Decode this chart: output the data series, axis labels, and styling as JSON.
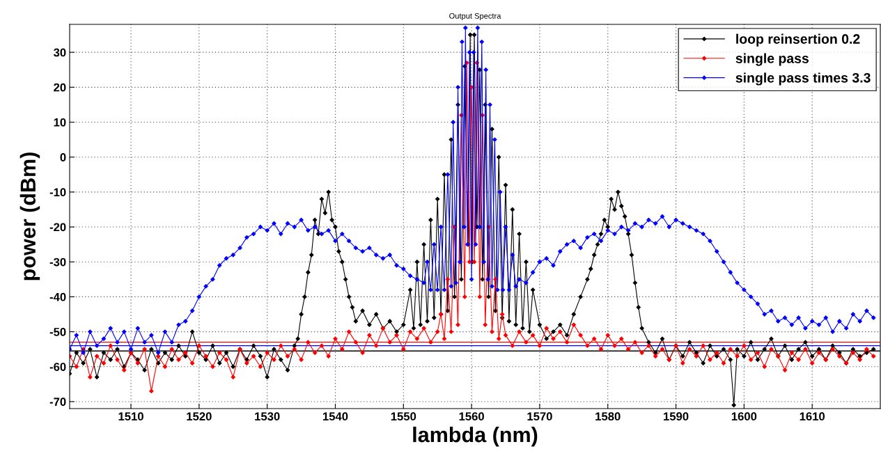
{
  "chart_data": {
    "type": "line",
    "title": "Output Spectra",
    "xlabel": "lambda (nm)",
    "ylabel": "power (dBm)",
    "xlim": [
      1501,
      1620
    ],
    "ylim": [
      -72,
      38
    ],
    "xticks": [
      1510,
      1520,
      1530,
      1540,
      1550,
      1560,
      1570,
      1580,
      1590,
      1600,
      1610
    ],
    "yticks": [
      -70,
      -60,
      -50,
      -40,
      -30,
      -20,
      -10,
      0,
      10,
      20,
      30
    ],
    "grid": true,
    "legend": "top right",
    "marker": "diamond",
    "line_style": "solid",
    "ref_lines": [
      {
        "axis": "y",
        "value": -53,
        "color": "#ff0000"
      },
      {
        "axis": "y",
        "value": -54,
        "color": "#0000ff"
      },
      {
        "axis": "y",
        "value": -55.5,
        "color": "#000000"
      }
    ],
    "series": [
      {
        "name": "loop reinsertion 0.2",
        "color": "#000000",
        "x": [
          1501,
          1502,
          1503,
          1504,
          1505,
          1506,
          1507,
          1508,
          1509,
          1510,
          1511,
          1512,
          1513,
          1514,
          1515,
          1516,
          1517,
          1518,
          1519,
          1520,
          1521,
          1522,
          1523,
          1524,
          1525,
          1526,
          1527,
          1528,
          1529,
          1530,
          1531,
          1532,
          1533,
          1534,
          1534.5,
          1535,
          1535.5,
          1536,
          1536.5,
          1537,
          1537.5,
          1538,
          1538.5,
          1539,
          1539.5,
          1540,
          1540.5,
          1541,
          1541.5,
          1542,
          1542.5,
          1543,
          1544,
          1545,
          1546,
          1547,
          1548,
          1549,
          1550,
          1551,
          1551.5,
          1552,
          1552.5,
          1553,
          1553.5,
          1554,
          1554.5,
          1555,
          1555.5,
          1556,
          1556.5,
          1557,
          1557.5,
          1558,
          1558.5,
          1559,
          1559.5,
          1559.8,
          1560.1,
          1560.4,
          1560.8,
          1561.2,
          1561.6,
          1562,
          1562.5,
          1563,
          1563.5,
          1564,
          1564.5,
          1565,
          1565.5,
          1566,
          1566.5,
          1567,
          1567.5,
          1568,
          1568.5,
          1569,
          1570,
          1571,
          1572,
          1573,
          1574,
          1575,
          1576,
          1577,
          1577.5,
          1578,
          1578.5,
          1579,
          1579.5,
          1580,
          1580.5,
          1581,
          1581.5,
          1582,
          1582.5,
          1583,
          1583.5,
          1584,
          1584.5,
          1585,
          1586,
          1587,
          1588,
          1589,
          1590,
          1591,
          1592,
          1593,
          1594,
          1595,
          1596,
          1597,
          1598,
          1598.5,
          1599,
          1600,
          1601,
          1602,
          1603,
          1604,
          1605,
          1606,
          1607,
          1608,
          1609,
          1610,
          1611,
          1612,
          1613,
          1614,
          1615,
          1616,
          1617,
          1618,
          1619
        ],
        "values": [
          -62,
          -56,
          -59,
          -55,
          -63,
          -56,
          -58,
          -55,
          -60,
          -56,
          -58,
          -61,
          -55,
          -59,
          -56,
          -58,
          -54,
          -57,
          -50,
          -56,
          -58,
          -54,
          -59,
          -56,
          -60,
          -55,
          -58,
          -54,
          -57,
          -63,
          -55,
          -58,
          -61,
          -54,
          -52,
          -45,
          -40,
          -33,
          -28,
          -18,
          -22,
          -12,
          -16,
          -10,
          -18,
          -20,
          -27,
          -30,
          -35,
          -40,
          -43,
          -47,
          -44,
          -48,
          -45,
          -49,
          -47,
          -50,
          -48,
          -38,
          -49,
          -30,
          -48,
          -25,
          -47,
          -18,
          -46,
          -12,
          -45,
          -5,
          -44,
          5,
          -40,
          15,
          -35,
          26,
          -25,
          35,
          -30,
          35,
          -20,
          25,
          -35,
          15,
          -40,
          8,
          -44,
          0,
          -46,
          -8,
          -47,
          -15,
          -48,
          -22,
          -49,
          -30,
          -50,
          -38,
          -48,
          -52,
          -50,
          -48,
          -51,
          -45,
          -40,
          -35,
          -32,
          -28,
          -25,
          -22,
          -18,
          -20,
          -12,
          -15,
          -10,
          -14,
          -17,
          -22,
          -28,
          -36,
          -43,
          -49,
          -53,
          -56,
          -52,
          -58,
          -54,
          -57,
          -53,
          -56,
          -59,
          -54,
          -57,
          -55,
          -58,
          -71,
          -55,
          -57,
          -53,
          -58,
          -55,
          -52,
          -57,
          -54,
          -58,
          -55,
          -53,
          -57,
          -55,
          -58,
          -54,
          -56,
          -59,
          -55,
          -57,
          -56,
          -55
        ]
      },
      {
        "name": "single pass",
        "color": "#ff0000",
        "x": [
          1501,
          1502,
          1503,
          1504,
          1505,
          1506,
          1507,
          1508,
          1509,
          1510,
          1511,
          1512,
          1513,
          1514,
          1515,
          1516,
          1517,
          1518,
          1519,
          1520,
          1521,
          1522,
          1523,
          1524,
          1525,
          1526,
          1527,
          1528,
          1529,
          1530,
          1531,
          1532,
          1533,
          1534,
          1535,
          1536,
          1537,
          1538,
          1539,
          1540,
          1541,
          1542,
          1543,
          1544,
          1545,
          1546,
          1547,
          1548,
          1549,
          1550,
          1551,
          1552,
          1553,
          1554,
          1555,
          1555.5,
          1556,
          1556.5,
          1557,
          1557.5,
          1558,
          1558.5,
          1559,
          1559.3,
          1559.7,
          1560,
          1560.4,
          1560.8,
          1561.2,
          1561.6,
          1562,
          1562.5,
          1563,
          1563.5,
          1564,
          1564.5,
          1565,
          1566,
          1567,
          1568,
          1569,
          1570,
          1571,
          1572,
          1573,
          1574,
          1575,
          1576,
          1577,
          1578,
          1579,
          1580,
          1581,
          1582,
          1583,
          1584,
          1585,
          1586,
          1587,
          1588,
          1589,
          1590,
          1591,
          1592,
          1593,
          1594,
          1595,
          1596,
          1597,
          1598,
          1599,
          1600,
          1601,
          1602,
          1603,
          1604,
          1605,
          1606,
          1607,
          1608,
          1609,
          1610,
          1611,
          1612,
          1613,
          1614,
          1615,
          1616,
          1617,
          1618,
          1619
        ],
        "values": [
          -57,
          -60,
          -55,
          -63,
          -57,
          -59,
          -54,
          -58,
          -61,
          -56,
          -59,
          -55,
          -67,
          -57,
          -60,
          -55,
          -58,
          -56,
          -59,
          -54,
          -57,
          -60,
          -56,
          -58,
          -63,
          -55,
          -59,
          -57,
          -60,
          -56,
          -58,
          -54,
          -57,
          -55,
          -58,
          -53,
          -56,
          -54,
          -57,
          -52,
          -55,
          -50,
          -53,
          -56,
          -51,
          -54,
          -49,
          -53,
          -51,
          -55,
          -50,
          -52,
          -49,
          -53,
          -50,
          -45,
          -52,
          -35,
          -50,
          -20,
          -48,
          12,
          -40,
          27,
          -30,
          20,
          -30,
          27,
          -40,
          12,
          -48,
          -20,
          -50,
          -35,
          -52,
          -45,
          -51,
          -54,
          -50,
          -53,
          -51,
          -54,
          -49,
          -52,
          -50,
          -53,
          -48,
          -51,
          -54,
          -52,
          -55,
          -51,
          -54,
          -52,
          -55,
          -53,
          -56,
          -54,
          -57,
          -55,
          -58,
          -54,
          -59,
          -55,
          -57,
          -54,
          -58,
          -56,
          -59,
          -55,
          -57,
          -54,
          -58,
          -56,
          -60,
          -55,
          -57,
          -61,
          -56,
          -58,
          -55,
          -59,
          -56,
          -58,
          -55,
          -57,
          -59,
          -56,
          -58,
          -55,
          -57
        ]
      },
      {
        "name": "single pass times 3.3",
        "color": "#0000ff",
        "x": [
          1501,
          1502,
          1503,
          1504,
          1505,
          1506,
          1507,
          1508,
          1509,
          1510,
          1511,
          1512,
          1513,
          1514,
          1515,
          1516,
          1517,
          1518,
          1519,
          1520,
          1521,
          1522,
          1523,
          1524,
          1525,
          1526,
          1527,
          1528,
          1529,
          1530,
          1531,
          1532,
          1533,
          1534,
          1535,
          1536,
          1537,
          1538,
          1539,
          1540,
          1541,
          1542,
          1543,
          1544,
          1545,
          1546,
          1547,
          1548,
          1549,
          1550,
          1551,
          1552,
          1553,
          1553.5,
          1554,
          1554.5,
          1555,
          1555.5,
          1556,
          1556.5,
          1557,
          1557.3,
          1557.7,
          1558,
          1558.3,
          1558.6,
          1558.9,
          1559.1,
          1559.4,
          1559.7,
          1560,
          1560.3,
          1560.6,
          1560.9,
          1561.2,
          1561.5,
          1561.8,
          1562.1,
          1562.4,
          1562.7,
          1563,
          1563.4,
          1563.8,
          1564.2,
          1564.6,
          1565,
          1565.5,
          1566,
          1566.5,
          1567,
          1568,
          1569,
          1570,
          1571,
          1572,
          1573,
          1574,
          1575,
          1576,
          1577,
          1578,
          1579,
          1580,
          1581,
          1582,
          1583,
          1584,
          1585,
          1586,
          1587,
          1588,
          1589,
          1590,
          1591,
          1592,
          1593,
          1594,
          1595,
          1596,
          1597,
          1598,
          1599,
          1600,
          1601,
          1602,
          1603,
          1604,
          1605,
          1606,
          1607,
          1608,
          1609,
          1610,
          1611,
          1612,
          1613,
          1614,
          1615,
          1616,
          1617,
          1618,
          1619
        ],
        "values": [
          -55,
          -51,
          -56,
          -50,
          -54,
          -52,
          -49,
          -53,
          -50,
          -55,
          -49,
          -53,
          -51,
          -56,
          -50,
          -53,
          -48,
          -47,
          -44,
          -40,
          -37,
          -35,
          -31,
          -29,
          -28,
          -26,
          -23,
          -22,
          -20,
          -21,
          -19,
          -22,
          -19,
          -20,
          -18,
          -21,
          -20,
          -22,
          -21,
          -24,
          -22,
          -24,
          -26,
          -27,
          -26,
          -28,
          -29,
          -28,
          -31,
          -32,
          -34,
          -35,
          -36,
          -30,
          -38,
          -25,
          -38,
          -20,
          -38,
          -5,
          -37,
          10,
          -36,
          20,
          -30,
          33,
          -20,
          37,
          -25,
          30,
          -35,
          30,
          -25,
          37,
          -20,
          33,
          -30,
          25,
          -35,
          15,
          -37,
          5,
          -38,
          -10,
          -38,
          -20,
          -38,
          -28,
          -37,
          -35,
          -36,
          -33,
          -30,
          -29,
          -31,
          -27,
          -25,
          -24,
          -26,
          -23,
          -22,
          -24,
          -21,
          -22,
          -20,
          -21,
          -19,
          -20,
          -18,
          -19,
          -17,
          -20,
          -18,
          -19,
          -20,
          -21,
          -22,
          -24,
          -27,
          -30,
          -33,
          -36,
          -38,
          -40,
          -42,
          -45,
          -44,
          -47,
          -46,
          -48,
          -46,
          -49,
          -47,
          -48,
          -46,
          -50,
          -47,
          -49,
          -45,
          -47,
          -44,
          -46
        ]
      }
    ]
  }
}
